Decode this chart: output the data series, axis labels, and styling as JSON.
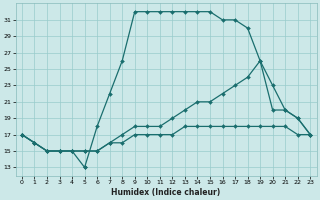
{
  "xlabel": "Humidex (Indice chaleur)",
  "bg_color": "#cce8e8",
  "grid_color": "#99cccc",
  "line_color": "#1a6e6e",
  "xlim": [
    -0.5,
    23.5
  ],
  "ylim": [
    12,
    33
  ],
  "xticks": [
    0,
    1,
    2,
    3,
    4,
    5,
    6,
    7,
    8,
    9,
    10,
    11,
    12,
    13,
    14,
    15,
    16,
    17,
    18,
    19,
    20,
    21,
    22,
    23
  ],
  "yticks": [
    13,
    15,
    17,
    19,
    21,
    23,
    25,
    27,
    29,
    31
  ],
  "line1_x": [
    0,
    1,
    2,
    3,
    4,
    5,
    5,
    6,
    7,
    8,
    9,
    10,
    11,
    12,
    13,
    14,
    15,
    16,
    17,
    18,
    19,
    20,
    21,
    22,
    23
  ],
  "line1_y": [
    17,
    16,
    15,
    15,
    15,
    13,
    13,
    18,
    22,
    26,
    32,
    32,
    32,
    32,
    32,
    32,
    32,
    31,
    31,
    30,
    26,
    23,
    20,
    19,
    17
  ],
  "line2_x": [
    0,
    1,
    2,
    3,
    4,
    5,
    6,
    7,
    8,
    9,
    10,
    11,
    12,
    13,
    14,
    15,
    16,
    17,
    18,
    19,
    20,
    21,
    22,
    23
  ],
  "line2_y": [
    17,
    16,
    15,
    15,
    15,
    15,
    15,
    16,
    16,
    17,
    17,
    17,
    17,
    18,
    18,
    18,
    18,
    18,
    18,
    18,
    18,
    18,
    17,
    17
  ],
  "line3_x": [
    0,
    1,
    2,
    3,
    4,
    5,
    6,
    7,
    8,
    9,
    10,
    11,
    12,
    13,
    14,
    15,
    16,
    17,
    18,
    19,
    20,
    21,
    22,
    23
  ],
  "line3_y": [
    17,
    16,
    15,
    15,
    15,
    15,
    15,
    16,
    17,
    18,
    18,
    18,
    19,
    20,
    21,
    21,
    22,
    23,
    24,
    26,
    20,
    20,
    19,
    17
  ]
}
